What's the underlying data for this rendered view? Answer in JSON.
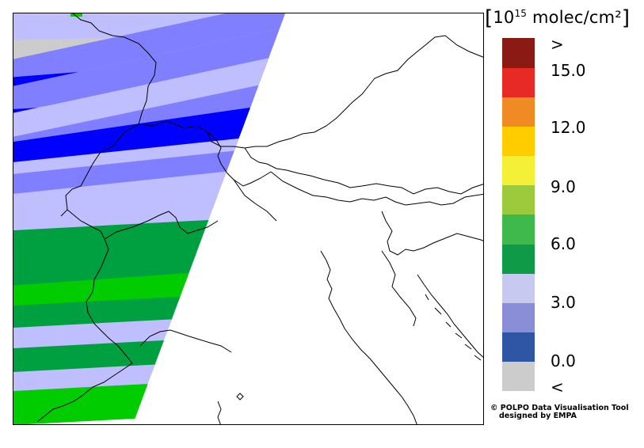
{
  "legend": {
    "units_prefix": "10",
    "units_exponent": "15",
    "units_suffix": " molec/cm²",
    "colors": [
      "#cccccc",
      "#2f55a5",
      "#8a8ed6",
      "#c8c9f0",
      "#0e9a47",
      "#3fb84c",
      "#9cca3c",
      "#f4f038",
      "#ffcc00",
      "#f08a24",
      "#e82a25",
      "#8b1a14"
    ],
    "tick_labels": [
      ">",
      "15.0",
      "12.0",
      "9.0",
      "6.0",
      "3.0",
      "0.0",
      "<"
    ]
  },
  "credit": {
    "line1": "© POLPO Data Visualisation Tool",
    "line2": "designed by EMPA"
  },
  "map": {
    "colors": {
      "grey": "#cccccc",
      "blue": "#0000ff",
      "mid_blue": "#7f7fff",
      "light_blue": "#bfbfff",
      "green": "#00a040",
      "bright_green": "#00cc00"
    }
  }
}
